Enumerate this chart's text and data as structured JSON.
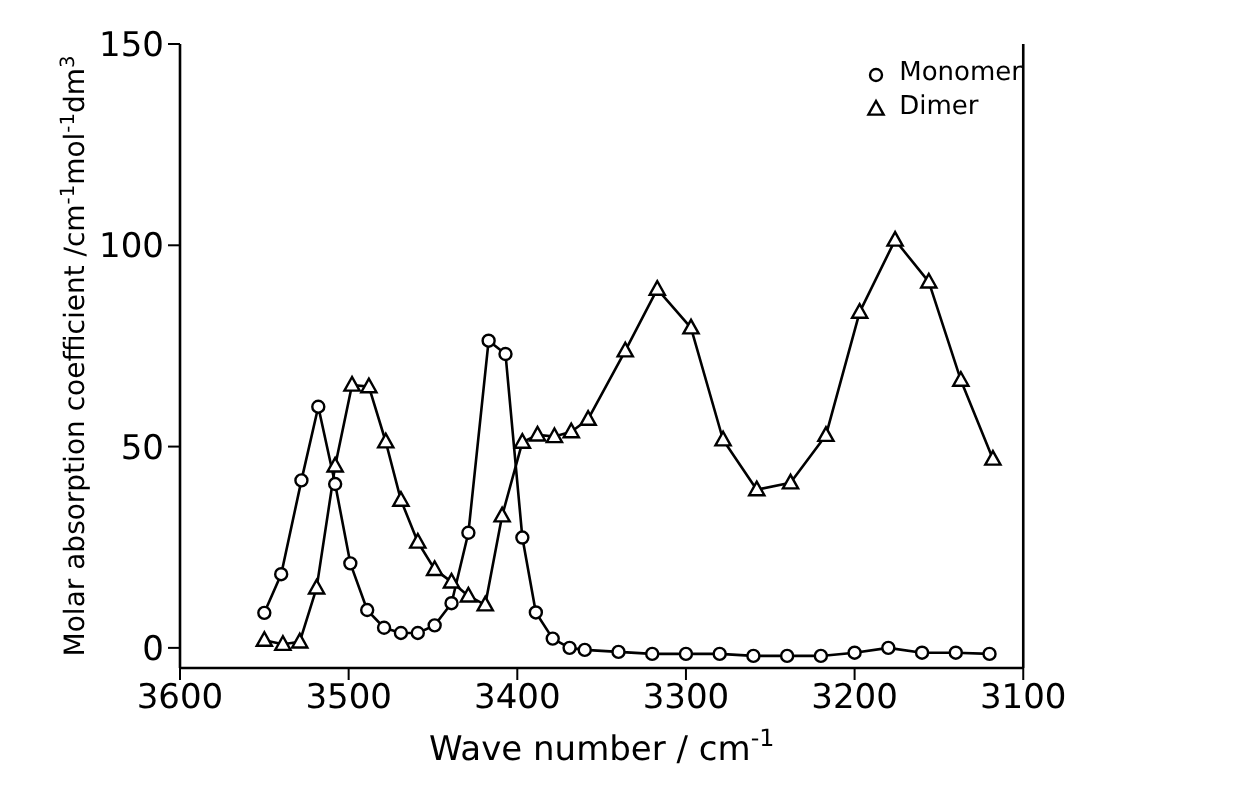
{
  "chart_data": {
    "type": "line",
    "xlabel": "Wave number / cm$^{-1}$",
    "ylabel": "Molar absorption coefficient /cm$^{-1}$mol$^{-1}$dm$^{3}$",
    "xlim": [
      3600,
      3100
    ],
    "xticks": [
      3600,
      3500,
      3400,
      3300,
      3200,
      3100
    ],
    "ylim": [
      -5,
      150
    ],
    "yticks": [
      0,
      50,
      100,
      150
    ],
    "legend": "top right",
    "series": [
      {
        "name": "Monomer",
        "color": "#000000",
        "marker": "circle",
        "x": [
          3550,
          3540,
          3528,
          3518,
          3508,
          3499,
          3489,
          3479,
          3469,
          3459,
          3449,
          3439,
          3429,
          3417,
          3407,
          3397,
          3389,
          3379,
          3369,
          3360,
          3340,
          3320,
          3300,
          3280,
          3260,
          3240,
          3220,
          3200,
          3180,
          3160,
          3140,
          3120
        ],
        "values": [
          8.7,
          18.3,
          41.6,
          59.9,
          40.7,
          21,
          9.4,
          5,
          3.7,
          3.7,
          5.6,
          11.1,
          28.6,
          76.3,
          73,
          27.4,
          8.8,
          2.3,
          0,
          -0.5,
          -1,
          -1.5,
          -1.5,
          -1.5,
          -2,
          -2,
          -2,
          -1.2,
          0,
          -1.2,
          -1.2,
          -1.5
        ]
      },
      {
        "name": "Dimer",
        "color": "#000000",
        "marker": "triangle",
        "x": [
          3550,
          3539,
          3529,
          3519,
          3508,
          3498,
          3488,
          3478,
          3469,
          3459,
          3449,
          3439,
          3429,
          3419,
          3409,
          3397,
          3388,
          3378,
          3368,
          3358,
          3336,
          3317,
          3297,
          3278,
          3258,
          3238,
          3217,
          3197,
          3176,
          3156,
          3137,
          3118
        ],
        "values": [
          1.9,
          0.9,
          1.5,
          14.9,
          45.2,
          65.3,
          64.9,
          51.2,
          36.7,
          26.3,
          19.5,
          16.4,
          12.9,
          10.7,
          32.8,
          51.1,
          52.9,
          52.5,
          53.7,
          56.8,
          73.8,
          89.1,
          79.5,
          51.7,
          39.3,
          41,
          52.8,
          83.4,
          101.3,
          90.9,
          66.5,
          46.9
        ]
      }
    ]
  }
}
